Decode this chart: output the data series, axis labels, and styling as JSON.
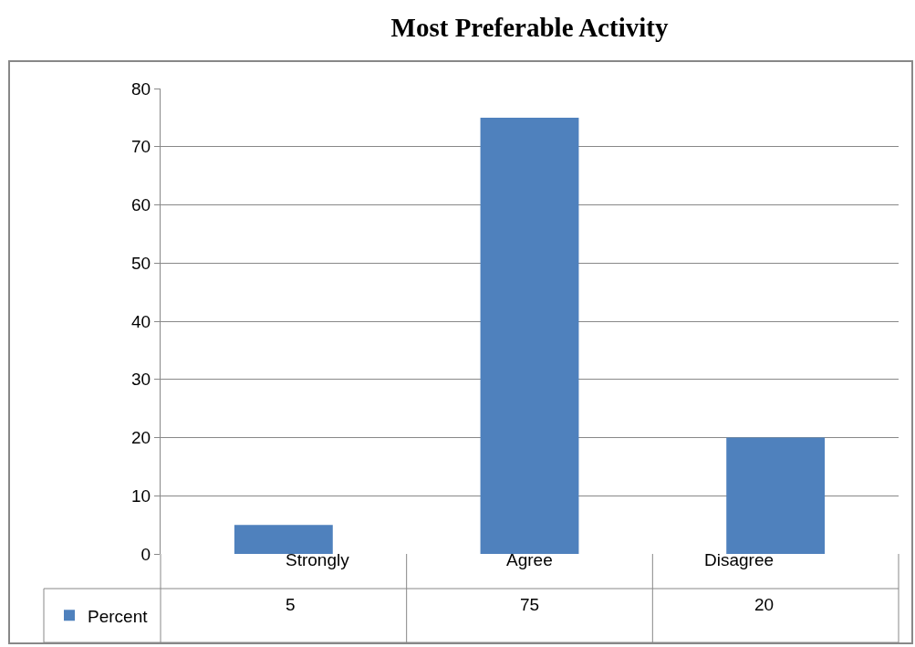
{
  "chart_data": {
    "type": "bar",
    "title": "Most Preferable Activity",
    "categories": [
      "Strongly",
      "Agree",
      "Disagree"
    ],
    "series": [
      {
        "name": "Percent",
        "color": "#4f81bd",
        "values": [
          5,
          75,
          20
        ]
      }
    ],
    "ylim": [
      0,
      80
    ],
    "yticks": [
      0,
      10,
      20,
      30,
      40,
      50,
      60,
      70,
      80
    ],
    "grid": "y",
    "legend": "bottom left",
    "data_labels": true
  }
}
